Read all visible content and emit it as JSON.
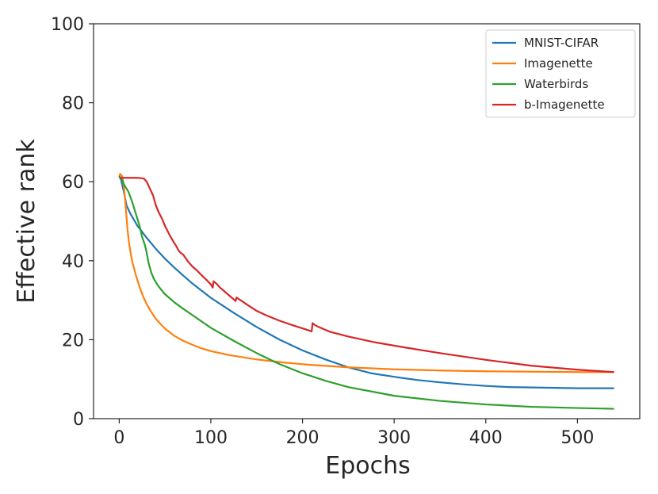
{
  "chart_data": {
    "type": "line",
    "title": "",
    "xlabel": "Epochs",
    "ylabel": "Effective rank",
    "xlim": [
      -28,
      568
    ],
    "ylim": [
      0,
      100
    ],
    "xticks": [
      0,
      100,
      200,
      300,
      400,
      500
    ],
    "yticks": [
      0,
      20,
      40,
      60,
      80,
      100
    ],
    "grid": false,
    "legend_position": "top-right",
    "series": [
      {
        "name": "MNIST-CIFAR",
        "color": "#1f77b4",
        "x": [
          0,
          2,
          5,
          8,
          12,
          20,
          30,
          40,
          50,
          60,
          70,
          80,
          100,
          125,
          150,
          175,
          200,
          225,
          250,
          275,
          300,
          325,
          350,
          375,
          400,
          425,
          450,
          475,
          500,
          540
        ],
        "y": [
          61.5,
          60.5,
          57.5,
          54,
          52,
          48.8,
          45.8,
          43,
          40.5,
          38.3,
          36.2,
          34.2,
          30.6,
          26.8,
          23.2,
          20,
          17.3,
          15,
          13,
          11.5,
          10.6,
          9.8,
          9.2,
          8.7,
          8.3,
          8.0,
          7.9,
          7.8,
          7.7,
          7.7
        ]
      },
      {
        "name": "Imagenette",
        "color": "#ff7f0e",
        "x": [
          0,
          1,
          3,
          5,
          7,
          9,
          11,
          14,
          18,
          22,
          26,
          30,
          35,
          40,
          45,
          50,
          60,
          70,
          80,
          90,
          100,
          120,
          150,
          180,
          210,
          250,
          300,
          350,
          400,
          450,
          500,
          540
        ],
        "y": [
          61.5,
          62,
          61.5,
          59,
          54,
          48,
          44,
          40,
          36.5,
          33.5,
          31,
          29,
          27,
          25.3,
          24,
          22.8,
          21,
          19.7,
          18.7,
          17.8,
          17.1,
          16.1,
          15,
          14.2,
          13.6,
          13.0,
          12.5,
          12.2,
          12.0,
          11.9,
          11.8,
          11.8
        ]
      },
      {
        "name": "Waterbirds",
        "color": "#2ca02c",
        "x": [
          0,
          3,
          6,
          10,
          14,
          18,
          22,
          25,
          28,
          30,
          32,
          35,
          38,
          42,
          46,
          50,
          60,
          70,
          80,
          100,
          125,
          150,
          175,
          200,
          225,
          250,
          300,
          350,
          400,
          450,
          500,
          540
        ],
        "y": [
          61.5,
          60.5,
          59,
          57.5,
          55,
          52,
          49,
          46,
          44,
          42,
          39.5,
          37,
          35.3,
          33.8,
          32.6,
          31.5,
          29.5,
          27.8,
          26.2,
          23,
          19.7,
          16.6,
          13.8,
          11.5,
          9.6,
          8.0,
          5.8,
          4.5,
          3.6,
          3.0,
          2.7,
          2.5
        ]
      },
      {
        "name": "b-Imagenette",
        "color": "#d62728",
        "x": [
          0,
          10,
          20,
          27,
          30,
          33,
          37,
          40,
          43,
          47,
          50,
          55,
          60,
          62,
          65,
          68,
          70,
          75,
          80,
          85,
          90,
          95,
          100,
          102,
          103,
          106,
          110,
          115,
          120,
          125,
          127,
          128,
          131,
          135,
          140,
          150,
          160,
          175,
          190,
          205,
          210,
          211,
          213,
          216,
          220,
          230,
          250,
          280,
          310,
          350,
          400,
          450,
          500,
          540
        ],
        "y": [
          61,
          61,
          61,
          60.8,
          60,
          58.5,
          56.5,
          54,
          52.3,
          50.5,
          48.8,
          46.5,
          44.5,
          43.8,
          42.5,
          41.8,
          41.5,
          39.8,
          38.5,
          37.5,
          36.3,
          35.2,
          34,
          33.2,
          34.8,
          34.2,
          33.2,
          32.2,
          31.2,
          30.2,
          29.8,
          30.7,
          30.2,
          29.6,
          28.8,
          27.3,
          26.2,
          24.8,
          23.6,
          22.5,
          22.1,
          24.2,
          23.8,
          23.4,
          23,
          22,
          20.8,
          19.3,
          18.1,
          16.6,
          14.9,
          13.4,
          12.4,
          11.8
        ]
      }
    ]
  }
}
